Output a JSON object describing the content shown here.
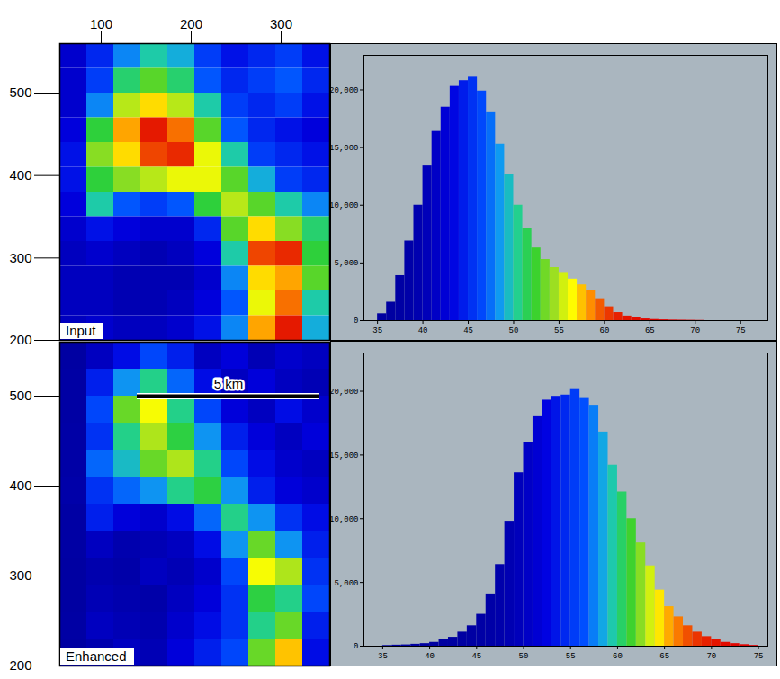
{
  "chart_data": [
    {
      "type": "heatmap",
      "label": "Input",
      "x": [
        69,
        99,
        129,
        159,
        189,
        219,
        249,
        279,
        309,
        339
      ],
      "y": [
        545,
        515,
        485,
        455,
        425,
        395,
        365,
        335,
        305,
        275,
        245,
        215
      ],
      "values": [
        [
          42,
          45,
          48,
          50,
          49,
          46,
          44,
          45,
          46,
          44
        ],
        [
          42,
          46,
          51,
          53,
          51,
          47,
          45,
          46,
          47,
          45
        ],
        [
          42,
          48,
          55,
          57,
          55,
          50,
          46,
          45,
          46,
          44
        ],
        [
          43,
          52,
          58,
          62,
          59,
          53,
          47,
          45,
          44,
          43
        ],
        [
          44,
          54,
          57,
          60,
          61,
          56,
          50,
          46,
          45,
          44
        ],
        [
          44,
          52,
          54,
          55,
          56,
          56,
          53,
          49,
          46,
          45
        ],
        [
          43,
          50,
          47,
          46,
          47,
          52,
          55,
          53,
          50,
          48
        ],
        [
          42,
          44,
          43,
          42,
          42,
          45,
          53,
          57,
          54,
          51
        ],
        [
          41,
          42,
          41,
          40,
          41,
          43,
          50,
          60,
          61,
          52
        ],
        [
          41,
          41,
          40,
          40,
          40,
          42,
          48,
          57,
          58,
          53
        ],
        [
          41,
          41,
          40,
          40,
          41,
          43,
          47,
          56,
          59,
          50
        ],
        [
          41,
          42,
          41,
          41,
          42,
          44,
          48,
          58,
          62,
          49
        ]
      ],
      "xlim": [
        54,
        354
      ],
      "ylim": [
        200,
        560
      ],
      "xticks": [
        100,
        200,
        300
      ],
      "yticks": [
        200,
        300,
        400,
        500
      ]
    },
    {
      "type": "histogram",
      "bins": [
        35,
        36,
        37,
        38,
        39,
        40,
        41,
        42,
        43,
        44,
        45,
        46,
        47,
        48,
        49,
        50,
        51,
        52,
        53,
        54,
        55,
        56,
        57,
        58,
        59,
        60,
        61,
        62,
        63,
        64,
        65,
        66,
        67,
        68,
        69,
        70,
        71
      ],
      "values": [
        600,
        1600,
        3900,
        6900,
        10000,
        13400,
        16400,
        18500,
        20300,
        20800,
        21100,
        19900,
        18100,
        15300,
        12700,
        10000,
        8000,
        6300,
        5300,
        4600,
        4100,
        3600,
        3100,
        2600,
        1900,
        1200,
        700,
        400,
        250,
        150,
        100,
        70,
        50,
        40,
        30,
        20
      ],
      "xlim": [
        33.5,
        78
      ],
      "ylim": [
        0,
        23000
      ],
      "xticks": [
        35,
        40,
        45,
        50,
        55,
        60,
        65,
        70,
        75
      ],
      "yticks": [
        0,
        5000,
        10000,
        15000,
        20000
      ]
    },
    {
      "type": "heatmap",
      "label": "Enhanced",
      "tick_labels": "y",
      "x": [
        69,
        99,
        129,
        159,
        189,
        219,
        249,
        279,
        309,
        339
      ],
      "y": [
        545,
        515,
        485,
        455,
        425,
        395,
        365,
        335,
        305,
        275,
        245,
        215
      ],
      "values": [
        [
          44,
          50,
          53,
          56,
          54,
          50,
          52,
          49,
          51,
          50
        ],
        [
          45,
          54,
          58,
          60,
          57,
          53,
          50,
          52,
          50,
          49
        ],
        [
          45,
          56,
          62,
          64,
          60,
          56,
          52,
          50,
          53,
          51
        ],
        [
          46,
          55,
          60,
          63,
          61,
          58,
          54,
          52,
          50,
          52
        ],
        [
          46,
          57,
          59,
          62,
          63,
          60,
          56,
          53,
          51,
          50
        ],
        [
          47,
          55,
          57,
          58,
          60,
          61,
          58,
          54,
          52,
          51
        ],
        [
          45,
          54,
          52,
          51,
          53,
          57,
          60,
          58,
          55,
          53
        ],
        [
          45,
          50,
          48,
          49,
          50,
          53,
          58,
          62,
          58,
          54
        ],
        [
          44,
          48,
          47,
          50,
          49,
          51,
          56,
          64,
          63,
          55
        ],
        [
          44,
          49,
          48,
          47,
          50,
          52,
          55,
          61,
          60,
          56
        ],
        [
          45,
          50,
          49,
          48,
          51,
          53,
          55,
          60,
          62,
          54
        ],
        [
          44,
          48,
          50,
          49,
          52,
          54,
          56,
          62,
          65,
          53
        ]
      ],
      "xlim": [
        54,
        354
      ],
      "ylim": [
        200,
        560
      ],
      "yticks": [
        200,
        300,
        400,
        500
      ],
      "scale_bar": {
        "label": "5 km",
        "x0": 140,
        "x1": 343,
        "y": 500
      }
    },
    {
      "type": "histogram",
      "bins": [
        35,
        36,
        37,
        38,
        39,
        40,
        41,
        42,
        43,
        44,
        45,
        46,
        47,
        48,
        49,
        50,
        51,
        52,
        53,
        54,
        55,
        56,
        57,
        58,
        59,
        60,
        61,
        62,
        63,
        64,
        65,
        66,
        67,
        68,
        69,
        70,
        71,
        72,
        73,
        74,
        75
      ],
      "values": [
        50,
        80,
        100,
        150,
        200,
        300,
        500,
        700,
        1100,
        1600,
        2500,
        4100,
        6400,
        9800,
        13600,
        16000,
        18000,
        19300,
        19600,
        19700,
        20200,
        19500,
        18900,
        16800,
        14200,
        12100,
        10000,
        8100,
        6300,
        4400,
        3100,
        2300,
        1600,
        1100,
        750,
        500,
        300,
        200,
        120,
        60
      ],
      "xlim": [
        33,
        76
      ],
      "ylim": [
        0,
        23000
      ],
      "xticks": [
        35,
        40,
        45,
        50,
        55,
        60,
        65,
        70,
        75
      ],
      "yticks": [
        0,
        5000,
        10000,
        15000,
        20000
      ]
    }
  ]
}
